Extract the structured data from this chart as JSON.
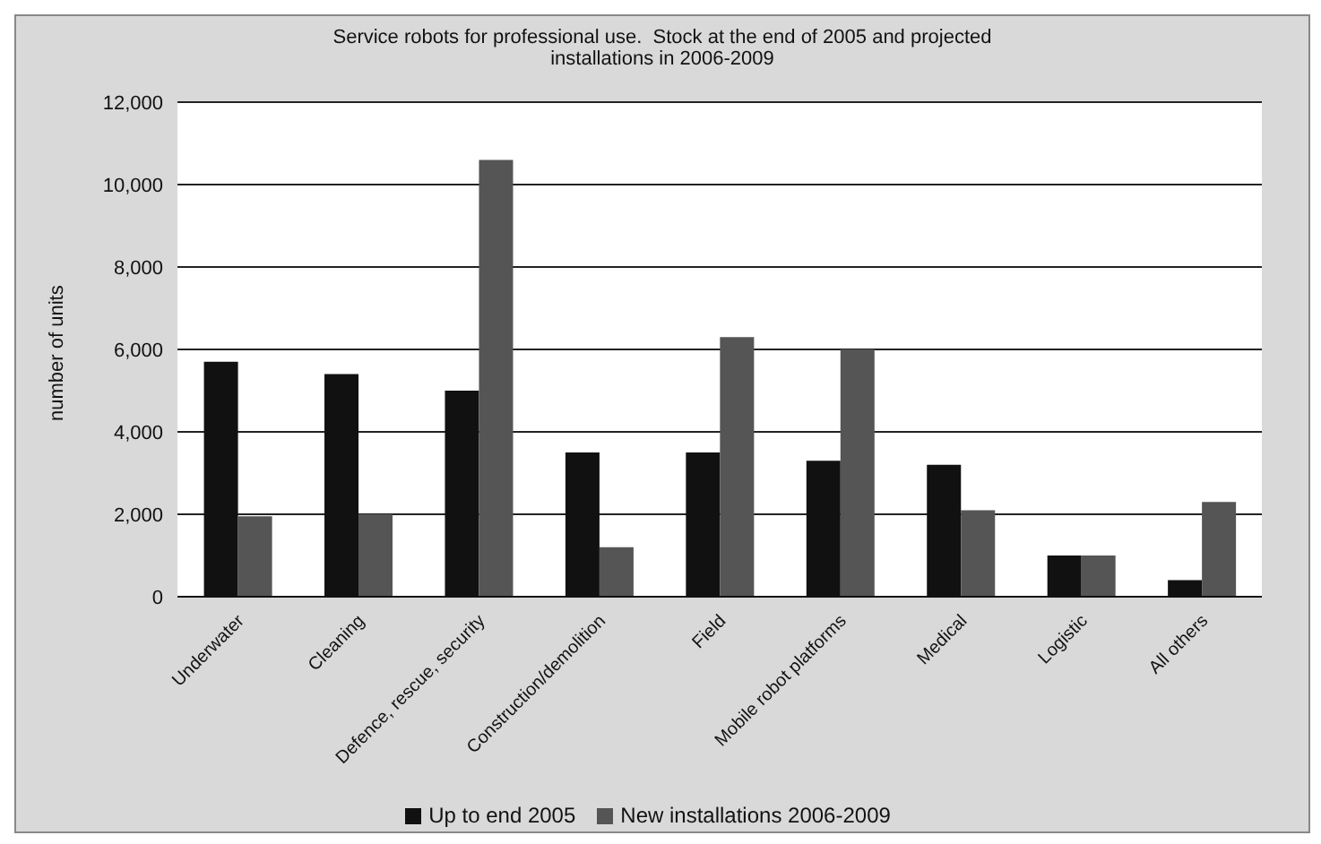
{
  "chart_data": {
    "type": "bar",
    "title": "Service robots for professional use.  Stock at the end of 2005 and projected installations in 2006-2009",
    "ylabel": "number of units",
    "categories": [
      "Underwater",
      "Cleaning",
      "Defence, rescue, security",
      "Construction/demolition",
      "Field",
      "Mobile robot platforms",
      "Medical",
      "Logistic",
      "All others"
    ],
    "series": [
      {
        "name": "Up to end 2005",
        "color": "#111111",
        "values": [
          5700,
          5400,
          5000,
          3500,
          3500,
          3300,
          3200,
          1000,
          400
        ]
      },
      {
        "name": "New installations 2006-2009",
        "color": "#555555",
        "values": [
          1950,
          2000,
          10600,
          1200,
          6300,
          6000,
          2100,
          1000,
          2300
        ]
      }
    ],
    "ylim": [
      0,
      12000
    ],
    "yticks": [
      {
        "value": 0,
        "label": "0"
      },
      {
        "value": 2000,
        "label": "2,000"
      },
      {
        "value": 4000,
        "label": "4,000"
      },
      {
        "value": 6000,
        "label": "6,000"
      },
      {
        "value": 8000,
        "label": "8,000"
      },
      {
        "value": 10000,
        "label": "10,000"
      },
      {
        "value": 12000,
        "label": "12,000"
      }
    ],
    "grid": "y",
    "legend": "bottom"
  }
}
